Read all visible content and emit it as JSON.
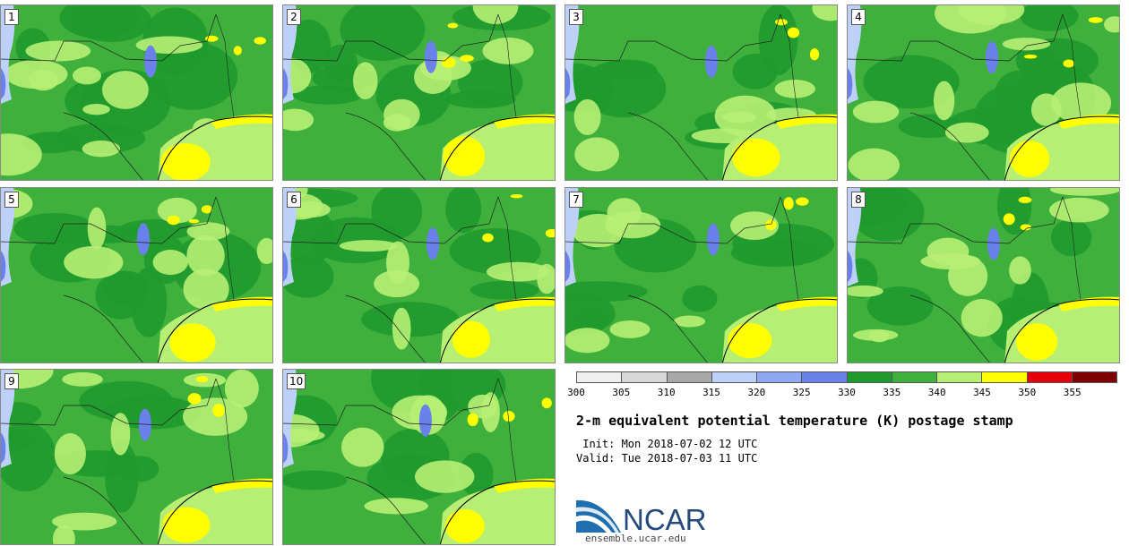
{
  "stamps": [
    "1",
    "2",
    "3",
    "4",
    "5",
    "6",
    "7",
    "8",
    "9",
    "10"
  ],
  "colorbar": {
    "ticks": [
      "300",
      "305",
      "310",
      "315",
      "320",
      "325",
      "330",
      "335",
      "340",
      "345",
      "350",
      "355"
    ],
    "colors": [
      "#efefef",
      "#d8d8d8",
      "#a8a8a8",
      "#bcd0f8",
      "#8ea8f4",
      "#6a80ea",
      "#1f9a2c",
      "#3fb03c",
      "#b7ef74",
      "#ffff00",
      "#e6000a",
      "#7e0000"
    ]
  },
  "title": "2-m equivalent potential temperature (K) postage stamp",
  "init": " Init: Mon 2018-07-02 12 UTC",
  "valid": "Valid: Tue 2018-07-03 11 UTC",
  "logo": {
    "text": "NCAR",
    "url": "ensemble.ucar.edu"
  },
  "palette": {
    "dark_green": "#1f9a2c",
    "mid_green": "#3fb03c",
    "light_green": "#b7ef74",
    "yellow": "#ffff00",
    "blue": "#6a80ea",
    "light_blue": "#bcd0f8"
  }
}
